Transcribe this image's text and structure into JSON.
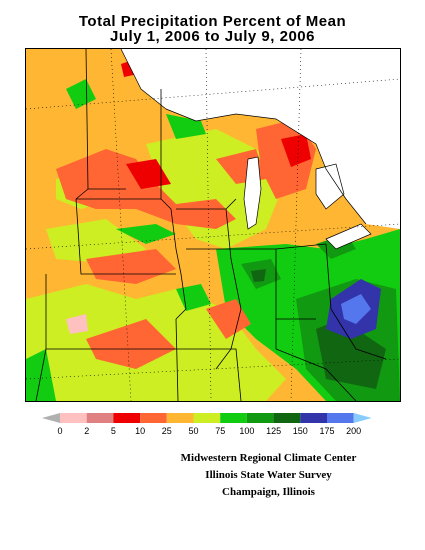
{
  "title": {
    "line1": "Total Precipitation Percent of Mean",
    "line2": "July 1, 2006 to July 9, 2006"
  },
  "legend": {
    "ticks": [
      "0",
      "2",
      "5",
      "10",
      "25",
      "50",
      "75",
      "100",
      "125",
      "150",
      "175",
      "200"
    ],
    "colors": [
      "#b0b0b0",
      "#ffc0c0",
      "#e08080",
      "#ee0000",
      "#ff6633",
      "#ffb733",
      "#ccee22",
      "#11cc11",
      "#119911",
      "#116611",
      "#3333aa",
      "#5577ee",
      "#88ccff"
    ]
  },
  "credits": {
    "line1": "Midwestern Regional Climate Center",
    "line2": "Illinois State Water Survey",
    "line3": "Champaign, Illinois"
  }
}
